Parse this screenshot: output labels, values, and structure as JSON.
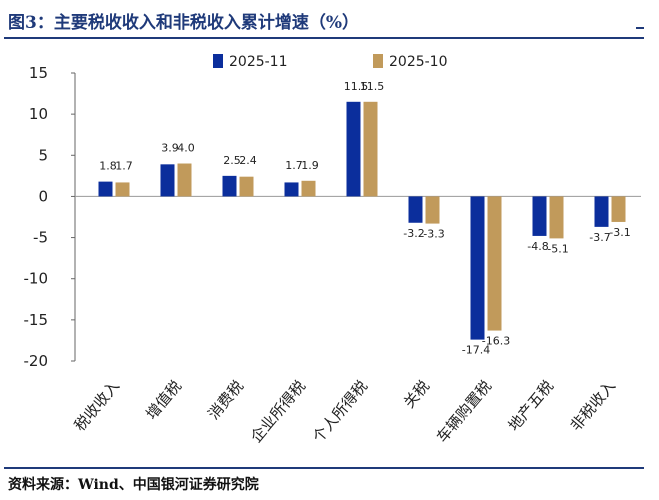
{
  "title": "图3：主要税收收入和非税收入累计增速（%）",
  "source": "资料来源：Wind、中国银河证券研究院",
  "colors": {
    "series1": "#0b2e9c",
    "series2": "#c19a5b",
    "accent": "#1f3a7a"
  },
  "chart_data": {
    "type": "bar",
    "title": "",
    "xlabel": "",
    "ylabel": "",
    "ylim": [
      -20,
      15
    ],
    "yticks": [
      15,
      10,
      5,
      0,
      -5,
      -10,
      -15,
      -20
    ],
    "ytick_labels": [
      "15",
      "10",
      "5",
      "0",
      "-5",
      "-10",
      "-15",
      "-20"
    ],
    "grid": false,
    "legend_position": "top",
    "categories": [
      "税收收入",
      "增值税",
      "消费税",
      "企业所得税",
      "个人所得税",
      "关税",
      "车辆购置税",
      "地产五税",
      "非税收入"
    ],
    "series": [
      {
        "name": "2025-11",
        "values": [
          1.8,
          3.9,
          2.5,
          1.7,
          11.5,
          -3.2,
          -17.4,
          -4.8,
          -3.7
        ]
      },
      {
        "name": "2025-10",
        "values": [
          1.7,
          4.0,
          2.4,
          1.9,
          11.5,
          -3.3,
          -16.3,
          -5.1,
          -3.1
        ]
      }
    ]
  }
}
